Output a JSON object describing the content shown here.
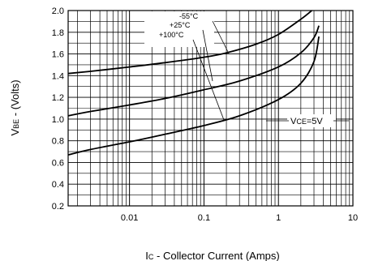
{
  "chart_data": {
    "type": "line",
    "x_scale": "log",
    "xlim": [
      0.0015,
      10
    ],
    "ylim": [
      0.2,
      2.0
    ],
    "grid": true,
    "ylabel_main": "V",
    "ylabel_sub": "BE",
    "ylabel_rest": " - (Volts)",
    "xlabel_main": "I",
    "xlabel_sub": "C",
    "xlabel_rest": " - Collector Current (Amps)",
    "x_ticks": [
      {
        "value": 0.01,
        "label": "0.01"
      },
      {
        "value": 0.1,
        "label": "0.1"
      },
      {
        "value": 1,
        "label": "1"
      },
      {
        "value": 10,
        "label": "10"
      }
    ],
    "y_ticks": [
      {
        "value": 0.2,
        "label": "0.2"
      },
      {
        "value": 0.4,
        "label": "0.4"
      },
      {
        "value": 0.6,
        "label": "0.6"
      },
      {
        "value": 0.8,
        "label": "0.8"
      },
      {
        "value": 1.0,
        "label": "1.0"
      },
      {
        "value": 1.2,
        "label": "1.2"
      },
      {
        "value": 1.4,
        "label": "1.4"
      },
      {
        "value": 1.6,
        "label": "1.6"
      },
      {
        "value": 1.8,
        "label": "1.8"
      },
      {
        "value": 2.0,
        "label": "2.0"
      }
    ],
    "series": [
      {
        "name": "-55°C",
        "x": [
          0.0015,
          0.003,
          0.01,
          0.03,
          0.1,
          0.2,
          0.5,
          1.0,
          2.0,
          2.8
        ],
        "y": [
          1.42,
          1.44,
          1.48,
          1.52,
          1.57,
          1.61,
          1.69,
          1.78,
          1.92,
          2.0
        ]
      },
      {
        "name": "+25°C",
        "x": [
          0.0015,
          0.003,
          0.01,
          0.03,
          0.1,
          0.3,
          1.0,
          2.0,
          3.0,
          3.5
        ],
        "y": [
          1.03,
          1.07,
          1.13,
          1.19,
          1.27,
          1.35,
          1.48,
          1.61,
          1.75,
          1.86
        ]
      },
      {
        "name": "+100°C",
        "x": [
          0.0015,
          0.003,
          0.01,
          0.03,
          0.1,
          0.3,
          1.0,
          2.0,
          3.0,
          3.5
        ],
        "y": [
          0.67,
          0.72,
          0.79,
          0.86,
          0.94,
          1.03,
          1.18,
          1.33,
          1.53,
          1.76
        ]
      }
    ],
    "annotations": {
      "temps": [
        "-55°C",
        "+25°C",
        "+100°C"
      ],
      "vce_main": "V",
      "vce_sub": "CE",
      "vce_rest": "=5V"
    }
  }
}
